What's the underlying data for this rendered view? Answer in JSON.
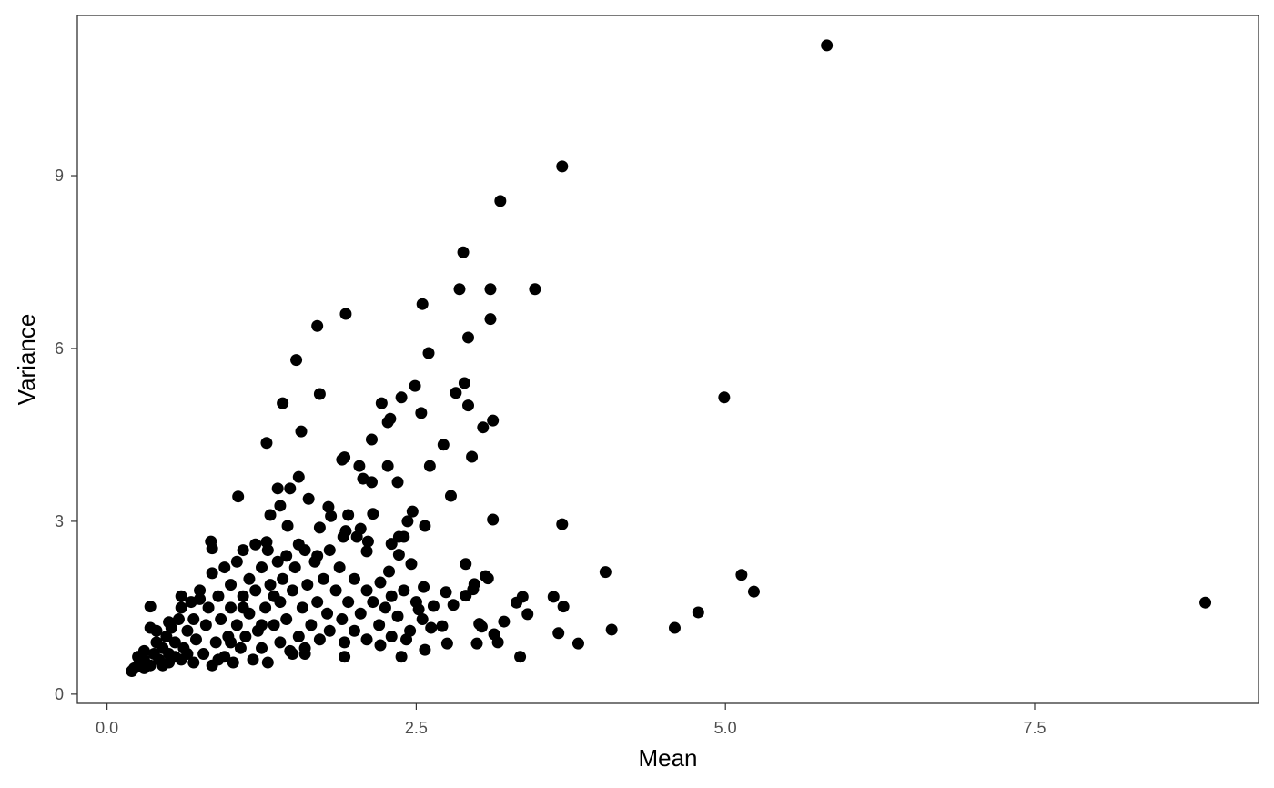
{
  "chart_data": {
    "type": "scatter",
    "x_label": "Mean",
    "y_label": "Variance",
    "color": "#000000",
    "grid": false,
    "xlim": [
      -0.24,
      9.31
    ],
    "ylim": [
      -0.16,
      11.78
    ],
    "xticks": [
      {
        "value": 0,
        "label": "0.0"
      },
      2.5,
      {
        "value": 5,
        "label": "5.0"
      },
      7.5
    ],
    "yticks": [
      0,
      3,
      6,
      9
    ],
    "x": [
      5.82,
      3.68,
      3.18,
      2.88,
      2.85,
      3.1,
      3.46,
      3.1,
      2.55,
      1.93,
      1.7,
      2.92,
      2.6,
      1.53,
      2.89,
      2.49,
      4.99,
      2.38,
      2.22,
      1.42,
      1.72,
      2.82,
      2.92,
      2.54,
      2.29,
      2.27,
      3.12,
      3.04,
      1.57,
      2.14,
      1.29,
      2.72,
      2.95,
      1.92,
      1.9,
      2.61,
      2.04,
      2.27,
      2.07,
      1.55,
      2.35,
      2.14,
      2.78,
      1.06,
      3.12,
      3.68,
      4.03,
      5.13,
      5.23,
      8.88,
      4.78,
      4.59,
      4.08,
      3.81,
      3.65,
      3.34,
      3.16,
      3.69,
      3.61,
      3.36,
      3.4,
      3.31,
      3.21,
      3.06,
      3.08,
      2.97,
      2.9,
      2.96,
      2.9,
      2.8,
      2.74,
      2.75,
      2.99,
      3.01,
      3.03,
      3.13,
      2.57,
      2.38,
      2.71,
      2.62,
      2.57,
      2.47,
      2.43,
      2.36,
      2.4,
      2.3,
      2.36,
      2.46,
      2.28,
      2.11,
      2.1,
      2.05,
      1.93,
      2.02,
      1.91,
      2.15,
      1.95,
      1.79,
      1.63,
      1.72,
      1.48,
      1.38,
      1.32,
      1.4,
      1.46,
      1.29,
      1.81,
      0.84,
      0.85,
      0.35,
      1.92,
      2.21,
      2.42,
      2.64,
      2.56,
      2.52,
      2.21,
      0.2,
      0.22,
      0.25,
      0.28,
      0.3,
      0.3,
      0.35,
      0.38,
      0.4,
      0.4,
      0.42,
      0.45,
      0.48,
      0.5,
      0.5,
      0.52,
      0.55,
      0.58,
      0.6,
      0.6,
      0.62,
      0.65,
      0.68,
      0.7,
      0.7,
      0.72,
      0.75,
      0.78,
      0.8,
      0.82,
      0.85,
      0.85,
      0.88,
      0.9,
      0.92,
      0.95,
      0.95,
      0.98,
      1.0,
      1.0,
      1.02,
      1.05,
      1.05,
      1.08,
      1.1,
      1.1,
      1.12,
      1.15,
      1.15,
      1.18,
      1.2,
      1.2,
      1.22,
      1.25,
      1.25,
      1.28,
      1.3,
      1.3,
      1.32,
      1.35,
      1.38,
      1.4,
      1.4,
      1.42,
      1.45,
      1.45,
      1.48,
      1.5,
      1.52,
      1.55,
      1.58,
      1.6,
      1.6,
      1.62,
      1.65,
      1.68,
      1.7,
      1.72,
      1.75,
      1.78,
      1.8,
      1.8,
      1.85,
      1.88,
      1.9,
      1.92,
      1.95,
      2.0,
      2.0,
      2.05,
      2.1,
      2.1,
      2.15,
      2.2,
      2.25,
      2.3,
      2.3,
      2.35,
      2.4,
      2.45,
      2.5,
      2.55,
      0.3,
      0.25,
      0.45,
      0.55,
      0.65,
      0.9,
      1.5,
      1.6,
      1.55,
      1.7,
      0.35,
      0.5,
      0.75,
      0.6,
      1.25,
      1.0,
      1.35,
      1.1
    ],
    "values": [
      11.26,
      9.16,
      8.56,
      7.67,
      7.03,
      7.03,
      7.03,
      6.51,
      6.77,
      6.6,
      6.39,
      6.19,
      5.92,
      5.8,
      5.4,
      5.35,
      5.15,
      5.15,
      5.05,
      5.05,
      5.21,
      5.23,
      5.01,
      4.88,
      4.78,
      4.72,
      4.75,
      4.63,
      4.56,
      4.42,
      4.36,
      4.33,
      4.12,
      4.11,
      4.07,
      3.96,
      3.96,
      3.96,
      3.74,
      3.77,
      3.68,
      3.68,
      3.44,
      3.43,
      3.03,
      2.95,
      2.12,
      2.07,
      1.78,
      1.59,
      1.42,
      1.15,
      1.12,
      0.88,
      1.06,
      0.65,
      0.9,
      1.52,
      1.69,
      1.69,
      1.39,
      1.59,
      1.26,
      2.05,
      2.01,
      1.91,
      2.26,
      1.82,
      1.71,
      1.55,
      1.77,
      0.88,
      0.88,
      1.22,
      1.17,
      1.04,
      0.77,
      0.65,
      1.18,
      1.15,
      2.92,
      3.17,
      3.0,
      2.73,
      2.73,
      2.61,
      2.42,
      2.26,
      2.13,
      2.65,
      2.48,
      2.87,
      2.83,
      2.73,
      2.73,
      3.13,
      3.11,
      3.25,
      3.39,
      2.89,
      3.57,
      3.57,
      3.11,
      3.27,
      2.92,
      2.64,
      3.09,
      2.65,
      2.53,
      1.52,
      0.65,
      0.85,
      0.95,
      1.53,
      1.86,
      1.47,
      1.94,
      0.4,
      0.45,
      0.5,
      0.55,
      0.6,
      0.75,
      0.5,
      0.7,
      0.9,
      1.1,
      0.6,
      0.8,
      1.0,
      0.55,
      0.7,
      1.15,
      0.9,
      1.3,
      0.6,
      1.5,
      0.8,
      1.1,
      1.6,
      0.55,
      1.3,
      0.95,
      1.8,
      0.7,
      1.2,
      1.5,
      0.5,
      2.1,
      0.9,
      1.7,
      1.3,
      0.65,
      2.2,
      1.0,
      1.5,
      1.9,
      0.55,
      2.3,
      1.2,
      0.8,
      1.7,
      2.5,
      1.0,
      2.0,
      1.4,
      0.6,
      2.6,
      1.8,
      1.1,
      2.2,
      0.8,
      1.5,
      2.5,
      0.55,
      1.9,
      1.2,
      2.3,
      0.9,
      1.6,
      2.0,
      2.4,
      1.3,
      0.75,
      1.8,
      2.2,
      1.0,
      1.5,
      2.5,
      0.8,
      1.9,
      1.2,
      2.3,
      1.6,
      0.95,
      2.0,
      1.4,
      2.5,
      1.1,
      1.8,
      2.2,
      1.3,
      0.9,
      1.6,
      2.0,
      1.1,
      1.4,
      1.8,
      0.95,
      1.6,
      1.2,
      1.5,
      1.7,
      1.0,
      1.35,
      1.8,
      1.1,
      1.6,
      1.3,
      0.45,
      0.65,
      0.5,
      0.65,
      0.7,
      0.6,
      0.7,
      0.7,
      2.6,
      2.4,
      1.15,
      1.25,
      1.65,
      1.7,
      1.2,
      0.9,
      1.7,
      1.5
    ]
  }
}
